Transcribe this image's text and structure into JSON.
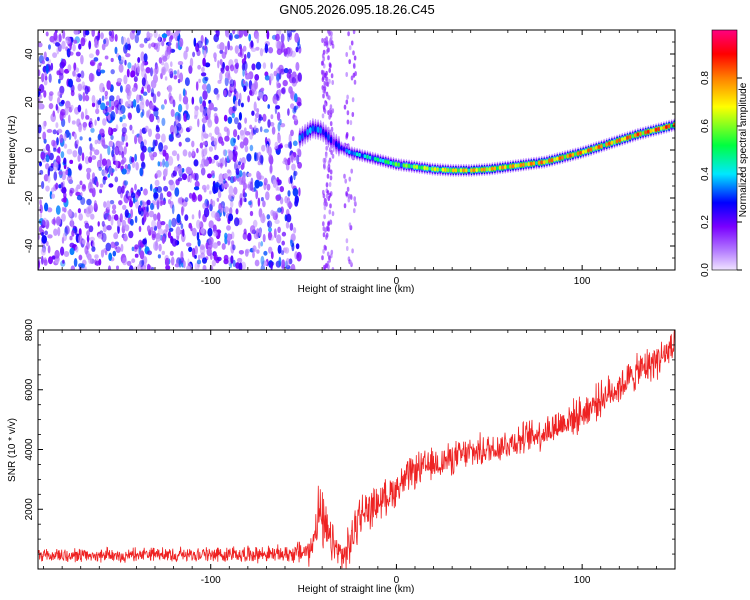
{
  "figure_title": "GN05.2026.095.18.26.C45",
  "chart_data": [
    {
      "type": "heatmap",
      "xlabel": "Height of straight line (km)",
      "ylabel": "Frequency (Hz)",
      "xlim": [
        -193,
        150
      ],
      "ylim": [
        -50,
        50
      ],
      "xticks": [
        -100,
        0,
        100
      ],
      "xtick_labels": [
        "-100",
        "0",
        "100"
      ],
      "yticks": [
        -40,
        -20,
        0,
        20,
        40
      ],
      "ytick_labels": [
        "-40",
        "-20",
        "0",
        "20",
        "40"
      ],
      "colorbar": {
        "label": "Normalized spectral amplitude",
        "range": [
          0,
          1
        ],
        "ticks": [
          0.0,
          0.2,
          0.4,
          0.6,
          0.8
        ],
        "tick_labels": [
          "0.0",
          "0.2",
          "0.4",
          "0.6",
          "0.8"
        ],
        "colors": [
          "#f0e4ff",
          "#7a00ff",
          "#0000ff",
          "#00e8ff",
          "#00ff40",
          "#ffff00",
          "#ff8000",
          "#ff0000",
          "#ff0080"
        ]
      },
      "noise_region_x": [
        -193,
        -52
      ],
      "ridge": {
        "x": [
          -52,
          -45,
          -40,
          -35,
          -30,
          -25,
          -20,
          -10,
          0,
          10,
          20,
          30,
          40,
          50,
          60,
          70,
          80,
          90,
          100,
          110,
          120,
          130,
          140,
          150
        ],
        "frequency": [
          5,
          9,
          8,
          4,
          1,
          -1,
          -2,
          -4,
          -6,
          -7,
          -8,
          -8.5,
          -8.5,
          -8,
          -7,
          -6,
          -5,
          -3,
          -1,
          1.5,
          4,
          6.5,
          8.5,
          10.5
        ],
        "amplitude": [
          0.35,
          0.4,
          0.35,
          0.3,
          0.3,
          0.4,
          0.45,
          0.5,
          0.6,
          0.65,
          0.7,
          0.75,
          0.8,
          0.8,
          0.8,
          0.82,
          0.85,
          0.85,
          0.85,
          0.85,
          0.85,
          0.88,
          0.9,
          0.9
        ]
      }
    },
    {
      "type": "line",
      "xlabel": "Height of straight line (km)",
      "ylabel": "SNR (10 * v/v)",
      "xlim": [
        -193,
        150
      ],
      "ylim": [
        0,
        8000
      ],
      "xticks": [
        -100,
        0,
        100
      ],
      "xtick_labels": [
        "-100",
        "0",
        "100"
      ],
      "yticks": [
        2000,
        4000,
        6000,
        8000
      ],
      "ytick_labels": [
        "2000",
        "4000",
        "6000",
        "8000"
      ],
      "series": [
        {
          "name": "SNR",
          "color": "#ee2222",
          "x": [
            -193,
            -150,
            -100,
            -60,
            -46,
            -42,
            -40,
            -36,
            -32,
            -28,
            -24,
            -20,
            -10,
            0,
            10,
            20,
            30,
            40,
            50,
            60,
            70,
            80,
            90,
            100,
            110,
            120,
            130,
            140,
            150
          ],
          "y": [
            450,
            450,
            500,
            500,
            600,
            2000,
            1500,
            1000,
            600,
            400,
            1000,
            1800,
            2200,
            2700,
            3300,
            3500,
            3700,
            3900,
            4000,
            4200,
            4400,
            4600,
            4900,
            5200,
            5700,
            6100,
            6600,
            7000,
            7400
          ],
          "spread": [
            300,
            300,
            320,
            330,
            600,
            1200,
            1200,
            900,
            700,
            700,
            900,
            900,
            700,
            700,
            700,
            650,
            650,
            650,
            650,
            650,
            650,
            700,
            700,
            700,
            700,
            700,
            700,
            750,
            750
          ]
        }
      ]
    }
  ]
}
